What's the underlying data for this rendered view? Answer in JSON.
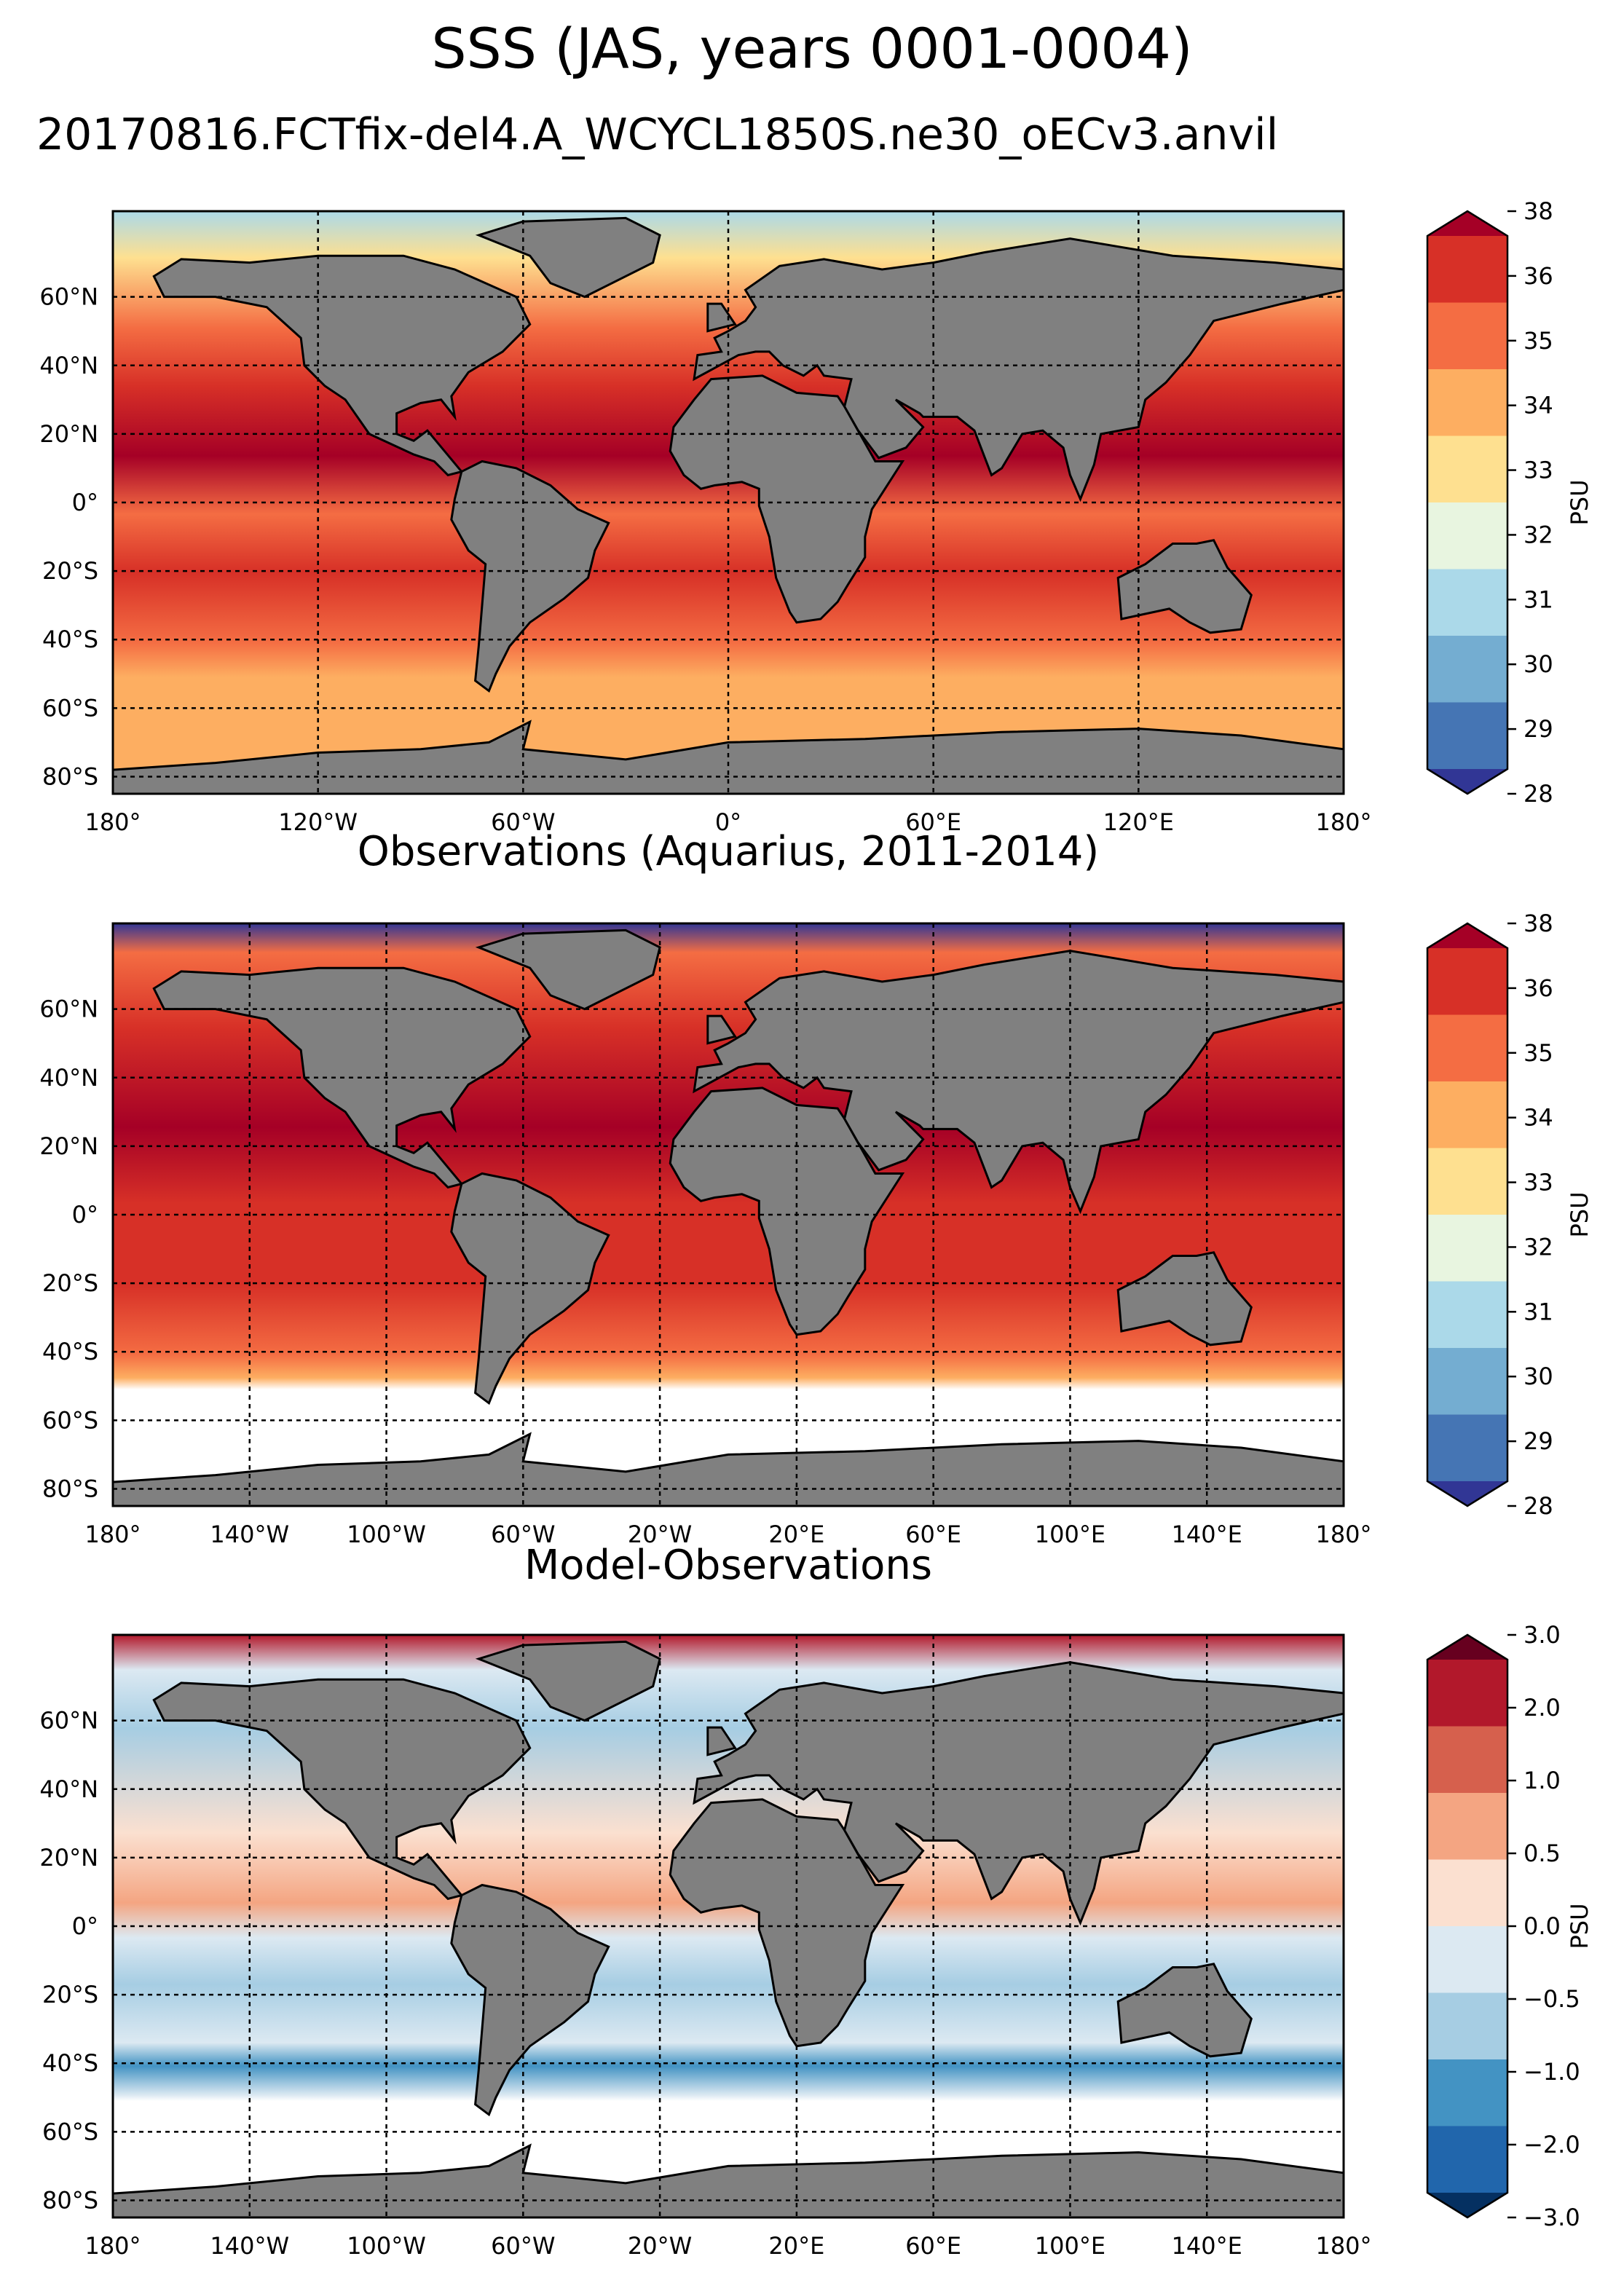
{
  "figure": {
    "title": "SSS (JAS, years 0001-0004)",
    "subtitle": "20170816.FCTfix-del4.A_WCYCL1850S.ne30_oECv3.anvil"
  },
  "colors": {
    "land": "#808080",
    "no_data": "#ffffff",
    "gridline": "#000000"
  },
  "panels": [
    {
      "id": "model",
      "title": "",
      "lon_ticks": [
        "180°",
        "120°W",
        "60°W",
        "0°",
        "60°E",
        "120°E",
        "180°"
      ],
      "lat_ticks": [
        "60°N",
        "40°N",
        "20°N",
        "0°",
        "20°S",
        "40°S",
        "60°S",
        "80°S"
      ],
      "colorbar": {
        "label": "PSU",
        "ticks": [
          "38",
          "36",
          "35",
          "34",
          "33",
          "32",
          "31",
          "30",
          "29",
          "28"
        ],
        "colors": [
          "#a50026",
          "#d73027",
          "#f46d43",
          "#fdae61",
          "#fee090",
          "#e8f5e0",
          "#abd9e9",
          "#74add1",
          "#4575b4",
          "#313695"
        ]
      }
    },
    {
      "id": "obs",
      "title": "Observations (Aquarius, 2011-2014)",
      "lon_ticks": [
        "180°",
        "140°W",
        "100°W",
        "60°W",
        "20°W",
        "20°E",
        "60°E",
        "100°E",
        "140°E",
        "180°"
      ],
      "lat_ticks": [
        "60°N",
        "40°N",
        "20°N",
        "0°",
        "20°S",
        "40°S",
        "60°S",
        "80°S"
      ],
      "colorbar": {
        "label": "PSU",
        "ticks": [
          "38",
          "36",
          "35",
          "34",
          "33",
          "32",
          "31",
          "30",
          "29",
          "28"
        ],
        "colors": [
          "#a50026",
          "#d73027",
          "#f46d43",
          "#fdae61",
          "#fee090",
          "#e8f5e0",
          "#abd9e9",
          "#74add1",
          "#4575b4",
          "#313695"
        ]
      }
    },
    {
      "id": "bias",
      "title": "Model-Observations",
      "lon_ticks": [
        "180°",
        "140°W",
        "100°W",
        "60°W",
        "20°W",
        "20°E",
        "60°E",
        "100°E",
        "140°E",
        "180°"
      ],
      "lat_ticks": [
        "60°N",
        "40°N",
        "20°N",
        "0°",
        "20°S",
        "40°S",
        "60°S",
        "80°S"
      ],
      "colorbar": {
        "label": "PSU",
        "ticks": [
          "3.0",
          "2.0",
          "1.0",
          "0.5",
          "0.0",
          "−0.5",
          "−1.0",
          "−2.0",
          "−3.0"
        ],
        "colors": [
          "#67001f",
          "#b2182b",
          "#d6604d",
          "#f4a582",
          "#fbe0d0",
          "#dce9f2",
          "#a6cde3",
          "#4393c3",
          "#2166ac",
          "#053061"
        ]
      }
    }
  ]
}
